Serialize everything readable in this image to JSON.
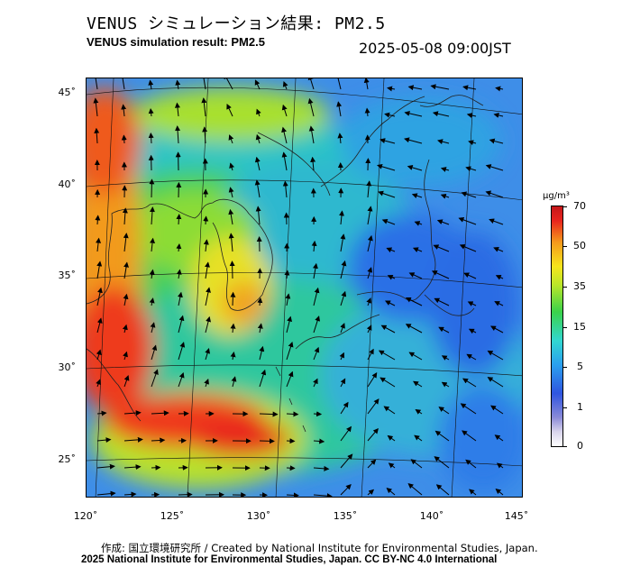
{
  "header": {
    "title_jp": "VENUS シミュレーション結果: PM2.5",
    "title_en": "VENUS simulation result: PM2.5",
    "timestamp": "2025-05-08 09:00JST"
  },
  "map": {
    "lat_ticks": [
      "45˚",
      "40˚",
      "35˚",
      "30˚",
      "25˚"
    ],
    "lon_ticks": [
      "120˚",
      "125˚",
      "130˚",
      "135˚",
      "140˚",
      "145˚"
    ],
    "field": "PM2.5 concentration with wind vectors"
  },
  "colorbar": {
    "unit": "μg/m³",
    "ticks": [
      "70",
      "50",
      "35",
      "15",
      "5",
      "1",
      "0"
    ],
    "colors": [
      "#c4171a",
      "#f59a1c",
      "#f6e51c",
      "#3ad24a",
      "#32d7d0",
      "#2f55e0",
      "#ffffff"
    ]
  },
  "footer": {
    "credit_line1": "作成: 国立環境研究所 / Created by National Institute for Environmental Studies, Japan.",
    "credit_line2": "2025 National Institute for Environmental Studies, Japan. CC BY-NC 4.0 International"
  }
}
